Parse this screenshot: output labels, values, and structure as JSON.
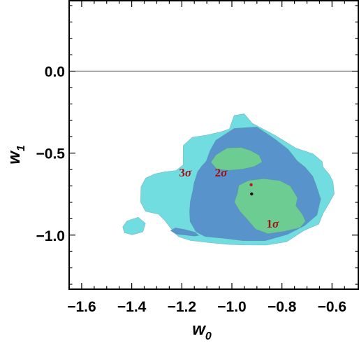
{
  "chart_data": {
    "type": "contour",
    "title": "",
    "xlabel": "w",
    "xlabel_sub": "0",
    "ylabel": "w",
    "ylabel_sub": "1",
    "xlim": [
      -1.65,
      -0.495
    ],
    "ylim": [
      -1.33,
      0.43
    ],
    "x_ticks": [
      -1.6,
      -1.4,
      -1.2,
      -1.0,
      -0.8,
      -0.6
    ],
    "x_tick_labels": [
      "−1.6",
      "−1.4",
      "−1.2",
      "−1.0",
      "−0.8",
      "−0.6"
    ],
    "y_ticks": [
      0.0,
      -0.5,
      -1.0
    ],
    "y_tick_labels": [
      "0.0",
      "−0.5",
      "−1.0"
    ],
    "reference_line_y": 0.0,
    "colors": {
      "sigma3": "#72dde1",
      "sigma2": "#5894cb",
      "sigma1": "#6dcc92",
      "red_point": "#b81c1c",
      "black_point": "#111111"
    },
    "regions": [
      {
        "label": "3σ",
        "label_num": "3",
        "label_greek": "σ",
        "level": 3,
        "fill": "sigma3",
        "label_pos": [
          -1.211,
          -0.643
        ],
        "polygons": [
          [
            [
              -1.194,
              -0.454
            ],
            [
              -1.158,
              -0.403
            ],
            [
              -1.103,
              -0.39
            ],
            [
              -1.048,
              -0.372
            ],
            [
              -1.01,
              -0.353
            ],
            [
              -0.991,
              -0.27
            ],
            [
              -0.951,
              -0.26
            ],
            [
              -0.919,
              -0.317
            ],
            [
              -0.827,
              -0.392
            ],
            [
              -0.745,
              -0.469
            ],
            [
              -0.676,
              -0.504
            ],
            [
              -0.639,
              -0.552
            ],
            [
              -0.636,
              -0.584
            ],
            [
              -0.61,
              -0.632
            ],
            [
              -0.596,
              -0.674
            ],
            [
              -0.591,
              -0.748
            ],
            [
              -0.615,
              -0.815
            ],
            [
              -0.635,
              -0.866
            ],
            [
              -0.653,
              -0.933
            ],
            [
              -0.712,
              -0.972
            ],
            [
              -0.781,
              -1.041
            ],
            [
              -0.862,
              -1.061
            ],
            [
              -0.95,
              -1.06
            ],
            [
              -1.014,
              -1.057
            ],
            [
              -1.092,
              -1.046
            ],
            [
              -1.165,
              -1.033
            ],
            [
              -1.213,
              -1.01
            ],
            [
              -1.245,
              -0.957
            ],
            [
              -1.268,
              -0.91
            ],
            [
              -1.293,
              -0.873
            ],
            [
              -1.345,
              -0.855
            ],
            [
              -1.365,
              -0.798
            ],
            [
              -1.363,
              -0.705
            ],
            [
              -1.344,
              -0.652
            ],
            [
              -1.308,
              -0.627
            ],
            [
              -1.268,
              -0.614
            ],
            [
              -1.223,
              -0.606
            ],
            [
              -1.194,
              -0.571
            ],
            [
              -1.195,
              -0.519
            ]
          ],
          [
            [
              -1.436,
              -0.95
            ],
            [
              -1.419,
              -0.914
            ],
            [
              -1.374,
              -0.891
            ],
            [
              -1.345,
              -0.929
            ],
            [
              -1.355,
              -0.98
            ],
            [
              -1.398,
              -0.998
            ],
            [
              -1.429,
              -0.986
            ]
          ]
        ]
      },
      {
        "label": "2σ",
        "label_num": "2",
        "label_greek": "σ",
        "level": 2,
        "fill": "sigma2",
        "label_pos": [
          -1.068,
          -0.643
        ],
        "polygons": [
          [
            [
              -1.103,
              -0.551
            ],
            [
              -1.087,
              -0.484
            ],
            [
              -1.064,
              -0.422
            ],
            [
              -0.991,
              -0.349
            ],
            [
              -0.9,
              -0.34
            ],
            [
              -0.83,
              -0.412
            ],
            [
              -0.775,
              -0.477
            ],
            [
              -0.739,
              -0.547
            ],
            [
              -0.708,
              -0.585
            ],
            [
              -0.677,
              -0.641
            ],
            [
              -0.663,
              -0.697
            ],
            [
              -0.645,
              -0.78
            ],
            [
              -0.66,
              -0.877
            ],
            [
              -0.71,
              -0.943
            ],
            [
              -0.779,
              -0.997
            ],
            [
              -0.867,
              -1.034
            ],
            [
              -0.955,
              -1.034
            ],
            [
              -1.036,
              -1.019
            ],
            [
              -1.107,
              -1.009
            ],
            [
              -1.143,
              -0.98
            ],
            [
              -1.167,
              -0.917
            ],
            [
              -1.169,
              -0.856
            ],
            [
              -1.166,
              -0.794
            ],
            [
              -1.157,
              -0.735
            ],
            [
              -1.151,
              -0.681
            ],
            [
              -1.137,
              -0.614
            ],
            [
              -1.12,
              -0.578
            ]
          ],
          [
            [
              -1.191,
              -0.999
            ],
            [
              -1.15,
              -1.006
            ],
            [
              -1.132,
              -1.002
            ],
            [
              -1.148,
              -0.982
            ],
            [
              -1.188,
              -0.966
            ],
            [
              -1.225,
              -0.956
            ],
            [
              -1.245,
              -0.972
            ],
            [
              -1.224,
              -0.994
            ]
          ]
        ]
      },
      {
        "label": "1σ",
        "label_num": "1",
        "label_greek": "σ",
        "level": 1,
        "fill": "sigma1",
        "label_pos": [
          -0.862,
          -0.954
        ],
        "polygons": [
          [
            [
              -1.084,
              -0.555
            ],
            [
              -1.063,
              -0.51
            ],
            [
              -1.019,
              -0.469
            ],
            [
              -0.964,
              -0.465
            ],
            [
              -0.925,
              -0.484
            ],
            [
              -0.891,
              -0.513
            ],
            [
              -0.879,
              -0.554
            ],
            [
              -0.911,
              -0.582
            ],
            [
              -0.954,
              -0.597
            ],
            [
              -1.012,
              -0.605
            ],
            [
              -1.06,
              -0.598
            ]
          ],
          [
            [
              -0.978,
              -0.746
            ],
            [
              -0.972,
              -0.696
            ],
            [
              -0.932,
              -0.666
            ],
            [
              -0.872,
              -0.656
            ],
            [
              -0.808,
              -0.668
            ],
            [
              -0.767,
              -0.7
            ],
            [
              -0.738,
              -0.772
            ],
            [
              -0.744,
              -0.822
            ],
            [
              -0.719,
              -0.872
            ],
            [
              -0.706,
              -0.915
            ],
            [
              -0.727,
              -0.955
            ],
            [
              -0.793,
              -0.978
            ],
            [
              -0.856,
              -0.992
            ],
            [
              -0.905,
              -0.964
            ],
            [
              -0.94,
              -0.902
            ],
            [
              -0.969,
              -0.853
            ],
            [
              -0.99,
              -0.798
            ]
          ]
        ]
      }
    ],
    "points": [
      {
        "name": "red",
        "x": -0.923,
        "y": -0.693,
        "color": "red_point"
      },
      {
        "name": "black",
        "x": -0.921,
        "y": -0.749,
        "color": "black_point"
      }
    ]
  }
}
